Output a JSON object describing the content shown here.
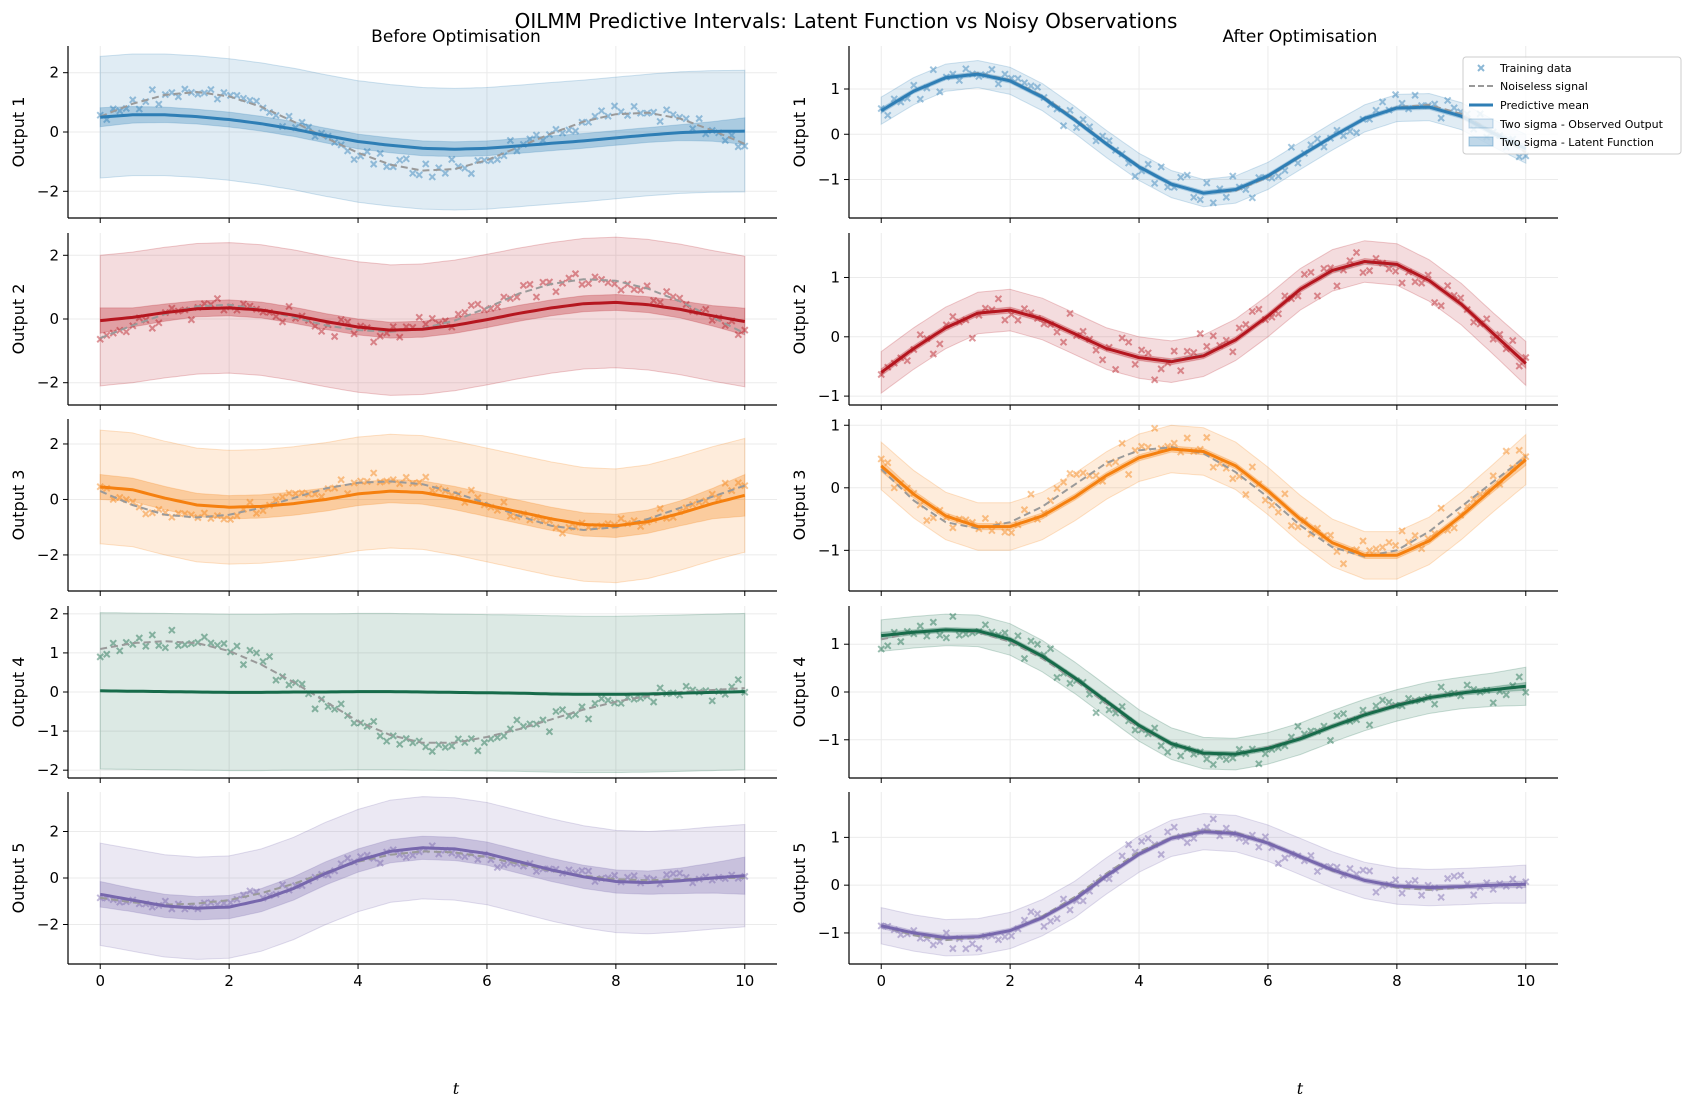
{
  "figure": {
    "suptitle": "OILMM Predictive Intervals: Latent Function vs Noisy Observations",
    "columns": [
      "Before Optimisation",
      "After Optimisation"
    ],
    "xlabel": "t"
  },
  "legend": {
    "placement": "upper right of top-right panel",
    "items": [
      {
        "key": "training",
        "label": "Training data"
      },
      {
        "key": "noiseless",
        "label": "Noiseless signal"
      },
      {
        "key": "mean",
        "label": "Predictive mean"
      },
      {
        "key": "obs_band",
        "label": "Two sigma - Observed Output"
      },
      {
        "key": "lat_band",
        "label": "Two sigma - Latent Function"
      }
    ]
  },
  "chart_data": {
    "type": "line",
    "grid": true,
    "x_ticks": [
      0,
      2,
      4,
      6,
      8,
      10
    ],
    "xlim": [
      -0.5,
      10.5
    ],
    "x": [
      0,
      0.5,
      1,
      1.5,
      2,
      2.5,
      3,
      3.5,
      4,
      4.5,
      5,
      5.5,
      6,
      6.5,
      7,
      7.5,
      8,
      8.5,
      9,
      9.5,
      10
    ],
    "outputs": [
      {
        "label": "Output 1",
        "color": "#2e7eb5",
        "noiseless": [
          0.52,
          0.95,
          1.25,
          1.35,
          1.2,
          0.85,
          0.35,
          -0.2,
          -0.7,
          -1.1,
          -1.3,
          -1.25,
          -0.95,
          -0.5,
          -0.05,
          0.35,
          0.6,
          0.65,
          0.45,
          0.05,
          -0.4
        ],
        "before": {
          "ylim": [
            -2.9,
            2.9
          ],
          "yticks": [
            -2,
            0,
            2
          ],
          "mean": [
            0.5,
            0.58,
            0.58,
            0.52,
            0.42,
            0.28,
            0.1,
            -0.12,
            -0.32,
            -0.45,
            -0.55,
            -0.58,
            -0.55,
            -0.47,
            -0.38,
            -0.3,
            -0.2,
            -0.1,
            -0.02,
            0.02,
            0.03
          ],
          "latent_sigma2": [
            0.32,
            0.28,
            0.26,
            0.25,
            0.25,
            0.25,
            0.25,
            0.25,
            0.25,
            0.25,
            0.25,
            0.25,
            0.25,
            0.25,
            0.25,
            0.25,
            0.25,
            0.25,
            0.27,
            0.33,
            0.45
          ],
          "obs_sigma2": [
            2.05,
            2.05,
            2.05,
            2.05,
            2.05,
            2.05,
            2.05,
            2.05,
            2.05,
            2.05,
            2.05,
            2.05,
            2.05,
            2.05,
            2.05,
            2.05,
            2.05,
            2.05,
            2.05,
            2.05,
            2.05
          ]
        },
        "after": {
          "ylim": [
            -1.85,
            1.95
          ],
          "yticks": [
            -1,
            0,
            1
          ],
          "mean": [
            0.52,
            0.95,
            1.25,
            1.33,
            1.18,
            0.82,
            0.32,
            -0.22,
            -0.72,
            -1.1,
            -1.3,
            -1.22,
            -0.92,
            -0.48,
            -0.05,
            0.35,
            0.58,
            0.6,
            0.4,
            0.02,
            -0.32
          ],
          "latent_sigma2": [
            0.06,
            0.05,
            0.05,
            0.05,
            0.05,
            0.05,
            0.05,
            0.05,
            0.05,
            0.05,
            0.05,
            0.05,
            0.05,
            0.05,
            0.05,
            0.05,
            0.05,
            0.05,
            0.05,
            0.06,
            0.08
          ],
          "obs_sigma2": [
            0.3,
            0.3,
            0.3,
            0.3,
            0.3,
            0.3,
            0.3,
            0.3,
            0.3,
            0.3,
            0.3,
            0.3,
            0.3,
            0.3,
            0.3,
            0.3,
            0.3,
            0.3,
            0.3,
            0.3,
            0.32
          ]
        }
      },
      {
        "label": "Output 2",
        "color": "#b5161f",
        "noiseless": [
          -0.6,
          -0.2,
          0.15,
          0.4,
          0.45,
          0.3,
          0.05,
          -0.2,
          -0.35,
          -0.4,
          -0.3,
          -0.05,
          0.35,
          0.8,
          1.1,
          1.25,
          1.2,
          0.95,
          0.55,
          0.05,
          -0.45
        ],
        "before": {
          "ylim": [
            -2.7,
            2.7
          ],
          "yticks": [
            -2,
            0,
            2
          ],
          "mean": [
            -0.05,
            0.05,
            0.2,
            0.32,
            0.35,
            0.28,
            0.12,
            -0.08,
            -0.25,
            -0.35,
            -0.32,
            -0.2,
            -0.02,
            0.18,
            0.35,
            0.48,
            0.52,
            0.45,
            0.3,
            0.1,
            -0.08
          ],
          "latent_sigma2": [
            0.4,
            0.3,
            0.27,
            0.25,
            0.25,
            0.25,
            0.25,
            0.25,
            0.25,
            0.25,
            0.25,
            0.25,
            0.25,
            0.25,
            0.25,
            0.25,
            0.25,
            0.25,
            0.27,
            0.32,
            0.42
          ],
          "obs_sigma2": [
            2.05,
            2.05,
            2.05,
            2.05,
            2.05,
            2.05,
            2.05,
            2.05,
            2.05,
            2.05,
            2.05,
            2.05,
            2.05,
            2.05,
            2.05,
            2.05,
            2.05,
            2.05,
            2.05,
            2.05,
            2.05
          ]
        },
        "after": {
          "ylim": [
            -1.15,
            1.75
          ],
          "yticks": [
            -1,
            0,
            1
          ],
          "mean": [
            -0.6,
            -0.2,
            0.15,
            0.4,
            0.45,
            0.3,
            0.05,
            -0.2,
            -0.35,
            -0.42,
            -0.32,
            -0.05,
            0.35,
            0.8,
            1.12,
            1.27,
            1.22,
            0.95,
            0.55,
            0.05,
            -0.45
          ],
          "latent_sigma2": [
            0.06,
            0.05,
            0.05,
            0.05,
            0.05,
            0.05,
            0.05,
            0.05,
            0.05,
            0.05,
            0.05,
            0.05,
            0.05,
            0.05,
            0.05,
            0.05,
            0.05,
            0.05,
            0.05,
            0.06,
            0.08
          ],
          "obs_sigma2": [
            0.35,
            0.35,
            0.35,
            0.35,
            0.35,
            0.35,
            0.35,
            0.35,
            0.35,
            0.35,
            0.35,
            0.35,
            0.35,
            0.35,
            0.35,
            0.35,
            0.35,
            0.35,
            0.35,
            0.35,
            0.37
          ]
        }
      },
      {
        "label": "Output 3",
        "color": "#f5800f",
        "noiseless": [
          0.3,
          -0.2,
          -0.55,
          -0.65,
          -0.55,
          -0.3,
          0.05,
          0.4,
          0.6,
          0.65,
          0.55,
          0.25,
          -0.15,
          -0.6,
          -0.95,
          -1.1,
          -1.0,
          -0.7,
          -0.3,
          0.1,
          0.5
        ],
        "before": {
          "ylim": [
            -3.3,
            2.9
          ],
          "yticks": [
            -2,
            0,
            2
          ],
          "mean": [
            0.45,
            0.35,
            0.05,
            -0.2,
            -0.28,
            -0.25,
            -0.15,
            0.0,
            0.2,
            0.3,
            0.25,
            0.05,
            -0.2,
            -0.45,
            -0.7,
            -0.9,
            -0.95,
            -0.8,
            -0.5,
            -0.15,
            0.15
          ],
          "latent_sigma2": [
            0.45,
            0.42,
            0.42,
            0.42,
            0.42,
            0.42,
            0.42,
            0.42,
            0.42,
            0.42,
            0.42,
            0.42,
            0.42,
            0.42,
            0.42,
            0.42,
            0.42,
            0.42,
            0.45,
            0.55,
            0.75
          ],
          "obs_sigma2": [
            2.05,
            2.05,
            2.05,
            2.05,
            2.05,
            2.05,
            2.05,
            2.05,
            2.05,
            2.05,
            2.05,
            2.05,
            2.05,
            2.05,
            2.05,
            2.05,
            2.05,
            2.05,
            2.05,
            2.05,
            2.05
          ]
        },
        "after": {
          "ylim": [
            -1.65,
            1.1
          ],
          "yticks": [
            -1,
            0,
            1
          ],
          "mean": [
            0.35,
            -0.1,
            -0.45,
            -0.62,
            -0.62,
            -0.45,
            -0.15,
            0.2,
            0.48,
            0.62,
            0.58,
            0.35,
            -0.05,
            -0.5,
            -0.88,
            -1.08,
            -1.08,
            -0.85,
            -0.45,
            0.0,
            0.45
          ],
          "latent_sigma2": [
            0.09,
            0.06,
            0.05,
            0.05,
            0.05,
            0.05,
            0.05,
            0.05,
            0.05,
            0.05,
            0.05,
            0.05,
            0.05,
            0.05,
            0.05,
            0.05,
            0.05,
            0.05,
            0.05,
            0.06,
            0.09
          ],
          "obs_sigma2": [
            0.38,
            0.38,
            0.38,
            0.38,
            0.38,
            0.38,
            0.38,
            0.38,
            0.38,
            0.38,
            0.38,
            0.38,
            0.38,
            0.38,
            0.38,
            0.38,
            0.38,
            0.38,
            0.38,
            0.38,
            0.4
          ]
        }
      },
      {
        "label": "Output 4",
        "color": "#176b4a",
        "noiseless": [
          1.1,
          1.25,
          1.3,
          1.25,
          1.05,
          0.7,
          0.25,
          -0.25,
          -0.75,
          -1.1,
          -1.3,
          -1.3,
          -1.15,
          -0.95,
          -0.7,
          -0.45,
          -0.25,
          -0.1,
          0.0,
          0.05,
          0.1
        ],
        "before": {
          "ylim": [
            -2.2,
            2.2
          ],
          "yticks": [
            -2,
            -1,
            0,
            1,
            2
          ],
          "mean": [
            0.03,
            0.02,
            0.01,
            0.0,
            -0.01,
            -0.01,
            0.0,
            0.0,
            0.01,
            0.01,
            0.0,
            -0.01,
            -0.02,
            -0.03,
            -0.05,
            -0.06,
            -0.06,
            -0.05,
            -0.03,
            -0.01,
            0.01
          ],
          "latent_sigma2": [
            0.02,
            0.02,
            0.02,
            0.02,
            0.02,
            0.02,
            0.02,
            0.02,
            0.02,
            0.02,
            0.02,
            0.02,
            0.02,
            0.02,
            0.02,
            0.02,
            0.02,
            0.02,
            0.02,
            0.02,
            0.02
          ],
          "obs_sigma2": [
            2.0,
            2.0,
            2.0,
            2.0,
            2.0,
            2.0,
            2.0,
            2.0,
            2.0,
            2.0,
            2.0,
            2.0,
            2.0,
            2.0,
            2.0,
            2.0,
            2.0,
            2.0,
            2.0,
            2.0,
            2.0
          ]
        },
        "after": {
          "ylim": [
            -1.8,
            1.8
          ],
          "yticks": [
            -1,
            0,
            1
          ],
          "mean": [
            1.18,
            1.25,
            1.3,
            1.28,
            1.1,
            0.75,
            0.3,
            -0.2,
            -0.7,
            -1.08,
            -1.28,
            -1.3,
            -1.18,
            -0.98,
            -0.72,
            -0.48,
            -0.28,
            -0.12,
            -0.02,
            0.05,
            0.12
          ],
          "latent_sigma2": [
            0.07,
            0.05,
            0.05,
            0.05,
            0.05,
            0.05,
            0.05,
            0.05,
            0.05,
            0.05,
            0.05,
            0.05,
            0.05,
            0.05,
            0.05,
            0.05,
            0.05,
            0.05,
            0.05,
            0.06,
            0.08
          ],
          "obs_sigma2": [
            0.33,
            0.33,
            0.33,
            0.33,
            0.33,
            0.33,
            0.33,
            0.33,
            0.33,
            0.33,
            0.33,
            0.33,
            0.33,
            0.33,
            0.33,
            0.33,
            0.33,
            0.33,
            0.33,
            0.35,
            0.4
          ]
        }
      },
      {
        "label": "Output 5",
        "color": "#7767ad",
        "noiseless": [
          -0.85,
          -1.05,
          -1.15,
          -1.1,
          -0.95,
          -0.65,
          -0.25,
          0.25,
          0.7,
          1.0,
          1.15,
          1.1,
          0.9,
          0.6,
          0.3,
          0.1,
          -0.05,
          -0.1,
          -0.05,
          0.0,
          0.0
        ],
        "before": {
          "ylim": [
            -3.7,
            3.7
          ],
          "yticks": [
            -2,
            0,
            2
          ],
          "mean": [
            -0.7,
            -0.95,
            -1.2,
            -1.3,
            -1.25,
            -0.95,
            -0.45,
            0.2,
            0.75,
            1.15,
            1.3,
            1.25,
            1.05,
            0.7,
            0.35,
            0.05,
            -0.15,
            -0.2,
            -0.12,
            0.0,
            0.1
          ],
          "latent_sigma2": [
            0.55,
            0.5,
            0.5,
            0.5,
            0.5,
            0.5,
            0.5,
            0.5,
            0.5,
            0.5,
            0.5,
            0.5,
            0.5,
            0.5,
            0.5,
            0.5,
            0.5,
            0.5,
            0.55,
            0.65,
            0.8
          ],
          "obs_sigma2": [
            2.2,
            2.2,
            2.2,
            2.2,
            2.2,
            2.2,
            2.2,
            2.2,
            2.2,
            2.2,
            2.2,
            2.2,
            2.2,
            2.2,
            2.2,
            2.2,
            2.2,
            2.2,
            2.2,
            2.2,
            2.2
          ]
        },
        "after": {
          "ylim": [
            -1.65,
            1.95
          ],
          "yticks": [
            -1,
            0,
            1
          ],
          "mean": [
            -0.85,
            -1.0,
            -1.1,
            -1.08,
            -0.95,
            -0.68,
            -0.3,
            0.2,
            0.65,
            0.98,
            1.12,
            1.08,
            0.88,
            0.6,
            0.32,
            0.1,
            -0.02,
            -0.05,
            -0.03,
            0.0,
            0.02
          ],
          "latent_sigma2": [
            0.06,
            0.05,
            0.05,
            0.05,
            0.05,
            0.05,
            0.05,
            0.05,
            0.05,
            0.05,
            0.05,
            0.05,
            0.05,
            0.05,
            0.05,
            0.05,
            0.05,
            0.05,
            0.05,
            0.06,
            0.07
          ],
          "obs_sigma2": [
            0.38,
            0.38,
            0.38,
            0.38,
            0.38,
            0.38,
            0.38,
            0.38,
            0.38,
            0.38,
            0.38,
            0.38,
            0.38,
            0.38,
            0.38,
            0.38,
            0.38,
            0.38,
            0.38,
            0.38,
            0.4
          ]
        }
      }
    ]
  }
}
